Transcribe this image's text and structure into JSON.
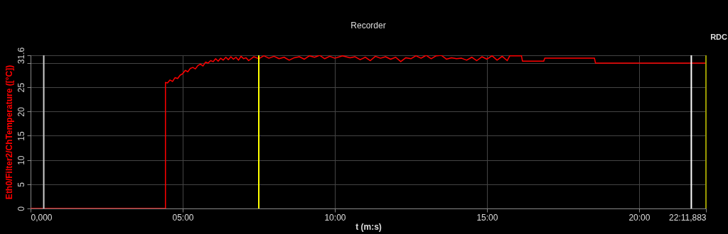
{
  "chart_data": {
    "type": "line",
    "title": "Recorder",
    "xlabel": "t (m:s)",
    "ylabel": "Eth0/Filter2/ChTemperature ([°C])",
    "annotations": [
      "RDC"
    ],
    "series": [
      {
        "color": "#ff0000",
        "x": [
          0,
          266,
          266,
          270,
          275,
          280,
          285,
          290,
          295,
          300,
          305,
          310,
          315,
          320,
          325,
          330,
          335,
          340,
          345,
          350,
          355,
          360,
          365,
          370,
          375,
          380,
          385,
          390,
          395,
          400,
          405,
          410,
          415,
          420,
          425,
          430,
          440,
          450,
          460,
          470,
          480,
          490,
          500,
          510,
          520,
          530,
          540,
          550,
          560,
          570,
          580,
          590,
          600,
          615,
          630,
          640,
          650,
          660,
          670,
          680,
          690,
          700,
          710,
          720,
          730,
          740,
          750,
          760,
          770,
          780,
          790,
          800,
          810,
          820,
          830,
          840,
          850,
          860,
          870,
          880,
          890,
          900,
          910,
          920,
          930,
          940,
          945,
          968,
          970,
          1012,
          1014,
          1112,
          1114,
          1331.883
        ],
        "values": [
          0,
          0,
          26,
          25.9,
          26.5,
          26.2,
          27,
          26.8,
          27.5,
          27.8,
          28.5,
          28.2,
          28.9,
          29.1,
          28.8,
          29.5,
          29.8,
          29.4,
          30.2,
          30.0,
          30.5,
          30.3,
          30.9,
          30.4,
          31.0,
          30.6,
          31.2,
          30.7,
          31.3,
          30.8,
          31.2,
          30.6,
          31.4,
          30.9,
          31.1,
          30.5,
          31.3,
          30.9,
          31.5,
          31.0,
          31.4,
          30.9,
          31.2,
          30.6,
          31.1,
          31.3,
          30.8,
          31.5,
          31.2,
          31.6,
          30.9,
          31.4,
          31.0,
          31.5,
          31.1,
          31.3,
          30.7,
          31.2,
          30.5,
          31.4,
          31.0,
          31.3,
          30.8,
          31.2,
          30.3,
          31.1,
          30.9,
          31.5,
          31.0,
          31.6,
          30.9,
          31.5,
          31.6,
          30.8,
          31.1,
          30.9,
          31.0,
          30.6,
          31.2,
          30.5,
          31.3,
          30.8,
          31.5,
          30.6,
          31.4,
          30.5,
          31.5,
          31.5,
          30.4,
          30.4,
          31.0,
          31.0,
          30.0,
          30.0
        ]
      }
    ],
    "xlim": [
      0,
      1331.883
    ],
    "xticks": [
      {
        "value": 0,
        "label": "0,000"
      },
      {
        "value": 300,
        "label": "05:00"
      },
      {
        "value": 600,
        "label": "10:00"
      },
      {
        "value": 900,
        "label": "15:00"
      },
      {
        "value": 1200,
        "label": "20:00"
      },
      {
        "value": 1331.883,
        "label": "22:11,883"
      }
    ],
    "ylim": [
      0,
      31.6
    ],
    "yticks": [
      0,
      5,
      10,
      15,
      20,
      25,
      {
        "value": 30,
        "label": null
      },
      31.6
    ],
    "ref_lines": [
      {
        "axis": "x",
        "value": 26,
        "color": "#cccccc"
      },
      {
        "axis": "x",
        "value": 450,
        "color": "#ffff00"
      },
      {
        "axis": "x",
        "value": 1303,
        "color": "#ffffff"
      },
      {
        "axis": "x",
        "value": 1331.883,
        "color": "#999900"
      }
    ],
    "grid": true,
    "marker": "none",
    "line_style": "solid"
  }
}
